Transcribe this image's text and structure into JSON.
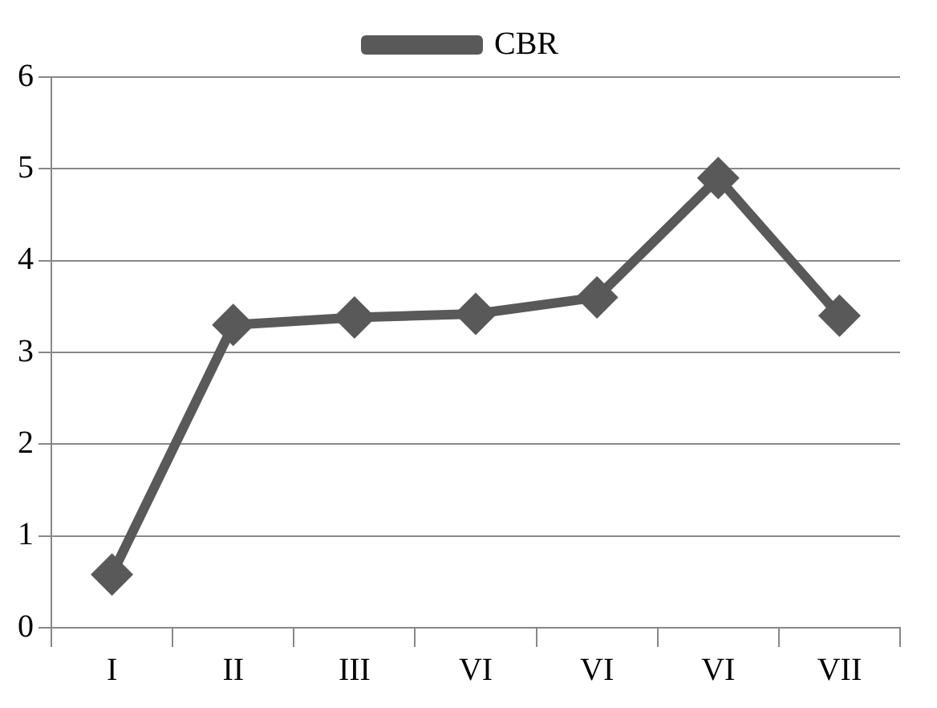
{
  "chart_data": {
    "type": "line",
    "categories": [
      "I",
      "II",
      "III",
      "VI",
      "VI",
      "VI",
      "VII"
    ],
    "series": [
      {
        "name": "CBR",
        "color": "#595959",
        "values": [
          0.58,
          3.3,
          3.38,
          3.42,
          3.6,
          4.9,
          3.4
        ]
      }
    ],
    "ylim": [
      0,
      6
    ],
    "yticks": [
      0,
      1,
      2,
      3,
      4,
      5,
      6
    ],
    "grid": "y",
    "legend": "top",
    "marker": "diamond",
    "line_style": "solid"
  }
}
